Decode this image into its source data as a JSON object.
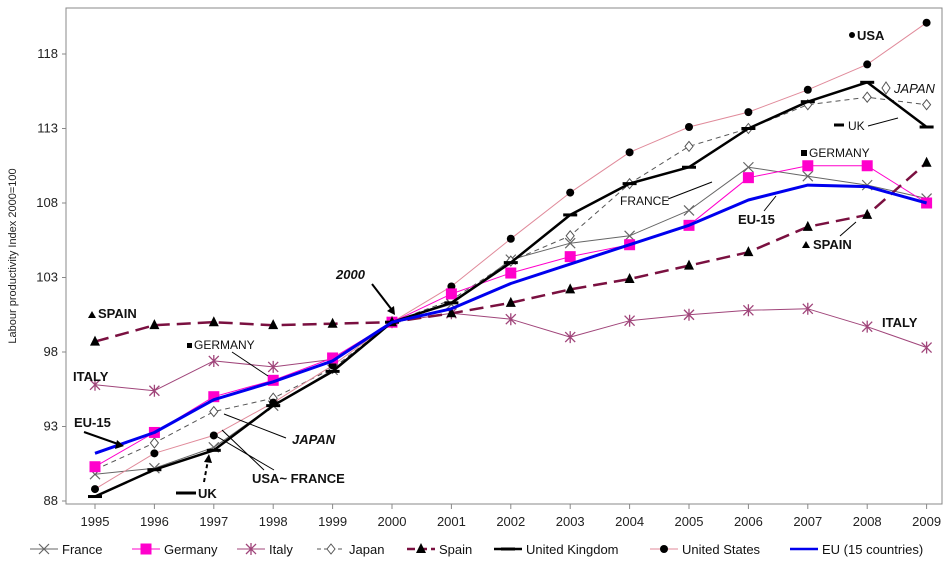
{
  "chart_data": {
    "type": "line",
    "title": "",
    "xlabel": "",
    "ylabel": "Labour productivity Index 2000=100",
    "ylim": [
      88,
      121
    ],
    "yticks": [
      88,
      93,
      98,
      103,
      108,
      113,
      118
    ],
    "categories": [
      "1995",
      "1996",
      "1997",
      "1998",
      "1999",
      "2000",
      "2001",
      "2002",
      "2003",
      "2004",
      "2005",
      "2006",
      "2007",
      "2008",
      "2009"
    ],
    "grid": false,
    "legend_position": "bottom",
    "series": [
      {
        "name": "France",
        "color": "#666666",
        "marker": "x",
        "dash": "solid",
        "values": [
          89.8,
          90.2,
          91.6,
          94.4,
          96.8,
          100,
          101.2,
          104.2,
          105.3,
          105.8,
          107.5,
          110.4,
          109.8,
          109.2,
          108.3
        ]
      },
      {
        "name": "Germany",
        "color": "#ff00cc",
        "marker": "square",
        "dash": "solid",
        "values": [
          90.3,
          92.6,
          95.0,
          96.1,
          97.6,
          100,
          101.9,
          103.3,
          104.4,
          105.2,
          106.5,
          109.7,
          110.5,
          110.5,
          108.0
        ]
      },
      {
        "name": "Italy",
        "color": "#a0457a",
        "marker": "star",
        "dash": "solid",
        "values": [
          95.8,
          95.4,
          97.4,
          97.0,
          97.5,
          100,
          100.6,
          100.2,
          99.0,
          100.1,
          100.5,
          100.8,
          100.9,
          99.7,
          98.3
        ]
      },
      {
        "name": "Japan",
        "color": "#555555",
        "marker": "diamond",
        "dash": "dashed",
        "values": [
          90.1,
          91.9,
          94.0,
          94.9,
          96.9,
          100,
          101.5,
          104.1,
          105.8,
          109.3,
          111.8,
          113.0,
          114.6,
          115.1,
          114.6
        ]
      },
      {
        "name": "Spain",
        "color": "#7a1040",
        "marker": "triangle",
        "dash": "longdash",
        "values": [
          98.7,
          99.8,
          100.0,
          99.8,
          99.9,
          100,
          100.6,
          101.3,
          102.2,
          102.9,
          103.8,
          104.7,
          106.4,
          107.2,
          110.7
        ]
      },
      {
        "name": "United Kingdom",
        "color": "#000000",
        "marker": "dash",
        "dash": "solid",
        "values": [
          88.3,
          90.1,
          91.4,
          94.4,
          96.7,
          100,
          101.3,
          104.0,
          107.2,
          109.3,
          110.4,
          113.0,
          114.8,
          116.1,
          113.1
        ]
      },
      {
        "name": "United States",
        "color": "#e08a9a",
        "marker": "circle",
        "dash": "solid",
        "values": [
          88.8,
          91.2,
          92.4,
          94.6,
          97.1,
          100,
          102.4,
          105.6,
          108.7,
          111.4,
          113.1,
          114.1,
          115.6,
          117.3,
          120.1
        ]
      },
      {
        "name": "EU (15 countries)",
        "color": "#0000ee",
        "marker": "none",
        "dash": "solid",
        "values": [
          91.2,
          92.6,
          94.8,
          96.0,
          97.4,
          100,
          100.9,
          102.6,
          103.9,
          105.2,
          106.5,
          108.2,
          109.2,
          109.1,
          108.0
        ]
      }
    ],
    "annotations": [
      {
        "text": "2000",
        "style": "italic-bold"
      },
      {
        "text": "SPAIN",
        "style": "bold"
      },
      {
        "text": "ITALY",
        "style": "bold"
      },
      {
        "text": "GERMANY",
        "style": "plain"
      },
      {
        "text": "EU-15",
        "style": "bold"
      },
      {
        "text": "JAPAN",
        "style": "italic-bold"
      },
      {
        "text": "USA~ FRANCE",
        "style": "bold"
      },
      {
        "text": "UK",
        "style": "bold"
      },
      {
        "text": "USA",
        "style": "bold"
      },
      {
        "text": "JAPAN",
        "style": "italic-plain"
      },
      {
        "text": "UK",
        "style": "plain"
      },
      {
        "text": "GERMANY",
        "style": "plain"
      },
      {
        "text": "FRANCE",
        "style": "plain"
      },
      {
        "text": "EU-15",
        "style": "bold"
      },
      {
        "text": "SPAIN",
        "style": "bold"
      },
      {
        "text": "ITALY",
        "style": "bold"
      }
    ]
  }
}
